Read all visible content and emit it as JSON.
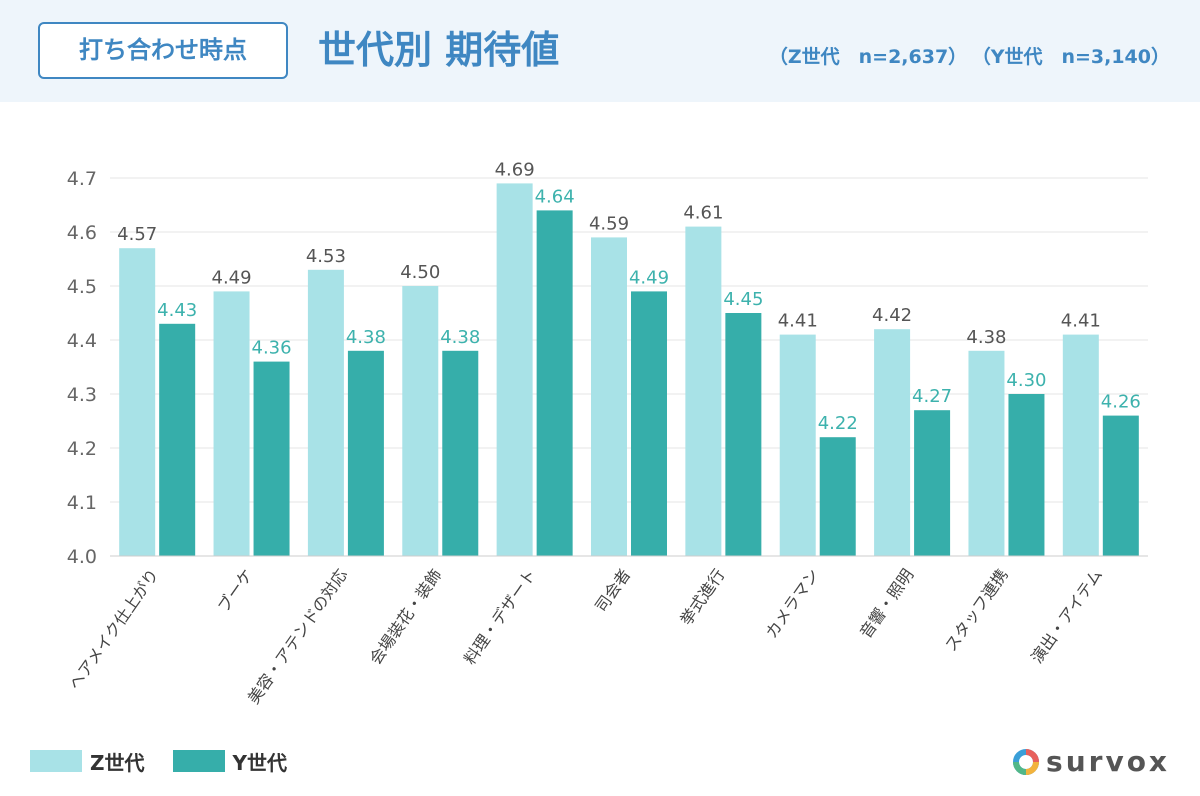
{
  "header": {
    "badge": "打ち合わせ時点",
    "title": "世代別 期待値",
    "sample_z": "（Z世代　n=2,637）",
    "sample_y": "（Y世代　n=3,140）"
  },
  "legend": {
    "z_label": "Z世代",
    "y_label": "Y世代"
  },
  "logo": {
    "text": "survox"
  },
  "colors": {
    "accent": "#3f87c2",
    "z_bar": "#a8e2e7",
    "y_bar": "#36aeaa",
    "z_label": "#555555",
    "y_label": "#3db2ad",
    "axis_text": "#666666",
    "grid": "#e4e4e4"
  },
  "chart_data": {
    "type": "bar",
    "categories": [
      "ヘアメイク仕上がり",
      "ブーケ",
      "美容・アテンドの対応",
      "会場装花・装飾",
      "料理・デザート",
      "司会者",
      "挙式進行",
      "カメラマン",
      "音響・照明",
      "スタッフ連携",
      "演出・アイテム"
    ],
    "series": [
      {
        "name": "Z世代",
        "values": [
          4.57,
          4.49,
          4.53,
          4.5,
          4.69,
          4.59,
          4.61,
          4.41,
          4.42,
          4.38,
          4.41
        ],
        "labels": [
          "4.57",
          "4.49",
          "4.53",
          "4.50",
          "4.69",
          "4.59",
          "4.61",
          "4.41",
          "4.42",
          "4.38",
          "4.41"
        ]
      },
      {
        "name": "Y世代",
        "values": [
          4.43,
          4.36,
          4.38,
          4.38,
          4.64,
          4.49,
          4.45,
          4.22,
          4.27,
          4.3,
          4.26
        ],
        "labels": [
          "4.43",
          "4.36",
          "4.38",
          "4.38",
          "4.64",
          "4.49",
          "4.45",
          "4.22",
          "4.27",
          "4.30",
          "4.26"
        ]
      }
    ],
    "ylim": [
      4.0,
      4.7
    ],
    "yticks": [
      "4.0",
      "4.1",
      "4.2",
      "4.3",
      "4.4",
      "4.5",
      "4.6",
      "4.7"
    ],
    "grid": true,
    "legend": "bottom-left"
  }
}
